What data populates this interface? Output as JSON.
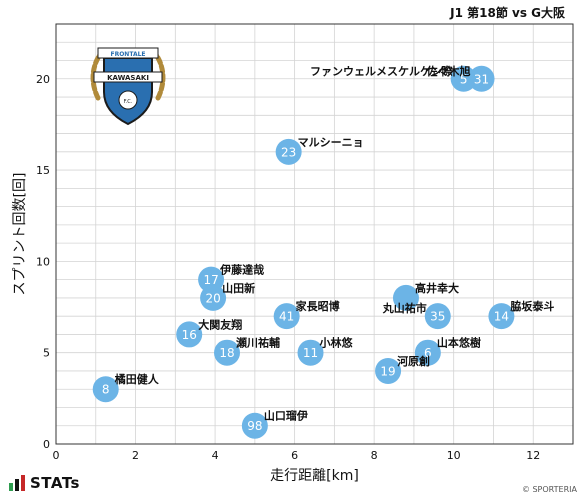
{
  "header": {
    "match_title": "J1 第18節 vs G大阪"
  },
  "footer": {
    "brand": "STATs",
    "credit": "© SPORTERIA"
  },
  "club_logo": {
    "text_top": "FRONTALE",
    "text_mid": "KAWASAKI",
    "text_bottom": "F.C."
  },
  "colors": {
    "point": "#6cb4e6",
    "point_text": "#ffffff",
    "grid": "#d4d4d4",
    "frame": "#333333",
    "logo_blue": "#2a6fb0"
  },
  "chart_data": {
    "type": "scatter",
    "xlabel": "走行距離[km]",
    "ylabel": "スプリント回数[回]",
    "xlim": [
      0,
      13
    ],
    "ylim": [
      0,
      23
    ],
    "xticks": [
      0,
      2,
      4,
      6,
      8,
      10,
      12
    ],
    "yticks": [
      0,
      5,
      10,
      15,
      20
    ],
    "grid": true,
    "points": [
      {
        "number": "5",
        "name": "ファンウェルメスケルケン際",
        "x": 10.25,
        "y": 20,
        "label_side": "left"
      },
      {
        "number": "31",
        "name": "佐々木旭",
        "x": 10.7,
        "y": 20,
        "label_side": "left"
      },
      {
        "number": "23",
        "name": "マルシーニョ",
        "x": 5.85,
        "y": 16,
        "label_side": "right"
      },
      {
        "number": "17",
        "name": "伊藤達哉",
        "x": 3.9,
        "y": 9,
        "label_side": "right"
      },
      {
        "number": "20",
        "name": "山田新",
        "x": 3.95,
        "y": 8,
        "label_side": "right"
      },
      {
        "number": "41",
        "name": "家長昭博",
        "x": 5.8,
        "y": 7,
        "label_side": "right"
      },
      {
        "number": "16",
        "name": "大関友翔",
        "x": 3.35,
        "y": 6,
        "label_side": "right"
      },
      {
        "number": "18",
        "name": "瀬川祐輔",
        "x": 4.3,
        "y": 5,
        "label_side": "right"
      },
      {
        "number": "11",
        "name": "小林悠",
        "x": 6.4,
        "y": 5,
        "label_side": "right"
      },
      {
        "number": "8",
        "name": "橘田健人",
        "x": 1.25,
        "y": 3,
        "label_side": "right"
      },
      {
        "number": "98",
        "name": "山口瑠伊",
        "x": 5.0,
        "y": 1,
        "label_side": "right"
      },
      {
        "number": "",
        "name": "高井幸大",
        "x": 8.8,
        "y": 8,
        "label_side": "right"
      },
      {
        "number": "35",
        "name": "丸山祐市",
        "x": 9.6,
        "y": 7,
        "label_side": "left"
      },
      {
        "number": "14",
        "name": "脇坂泰斗",
        "x": 11.2,
        "y": 7,
        "label_side": "right"
      },
      {
        "number": "6",
        "name": "山本悠樹",
        "x": 9.35,
        "y": 5,
        "label_side": "right"
      },
      {
        "number": "19",
        "name": "河原創",
        "x": 8.35,
        "y": 4,
        "label_side": "right"
      }
    ]
  }
}
